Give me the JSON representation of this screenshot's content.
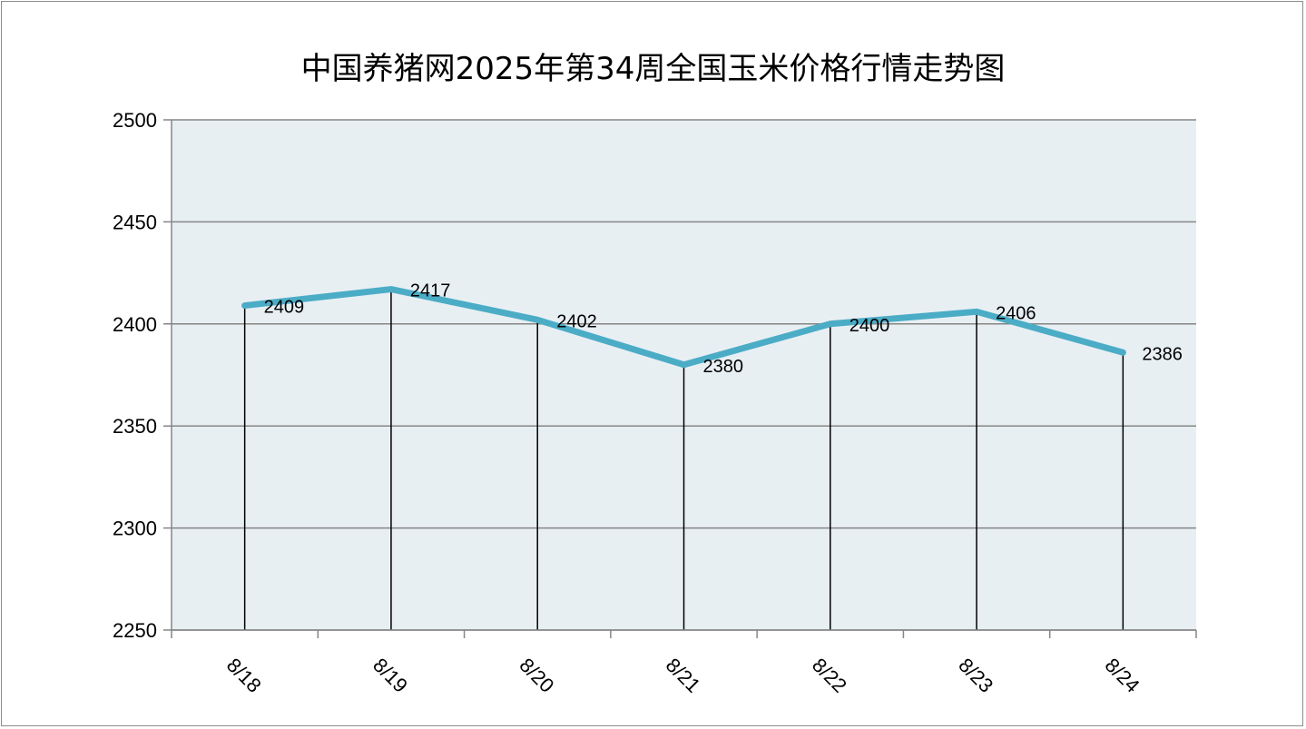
{
  "chart_data": {
    "type": "line",
    "title": "中国养猪网2025年第34周全国玉米价格行情走势图",
    "categories": [
      "8/18",
      "8/19",
      "8/20",
      "8/21",
      "8/22",
      "8/23",
      "8/24"
    ],
    "series": [
      {
        "values": [
          2409,
          2417,
          2402,
          2380,
          2400,
          2406,
          2386
        ]
      }
    ],
    "data_labels": [
      "2409",
      "2417",
      "2402",
      "2380",
      "2400",
      "2406",
      "2386"
    ],
    "yticks": [
      2250,
      2300,
      2350,
      2400,
      2450,
      2500
    ],
    "ylim": [
      2250,
      2500
    ],
    "xlabel": "",
    "ylabel": "",
    "grid": true,
    "drop_lines": true,
    "colors": {
      "line": "#4bacc6",
      "plot_bg": "#e8eff3",
      "grid": "#868686"
    }
  }
}
